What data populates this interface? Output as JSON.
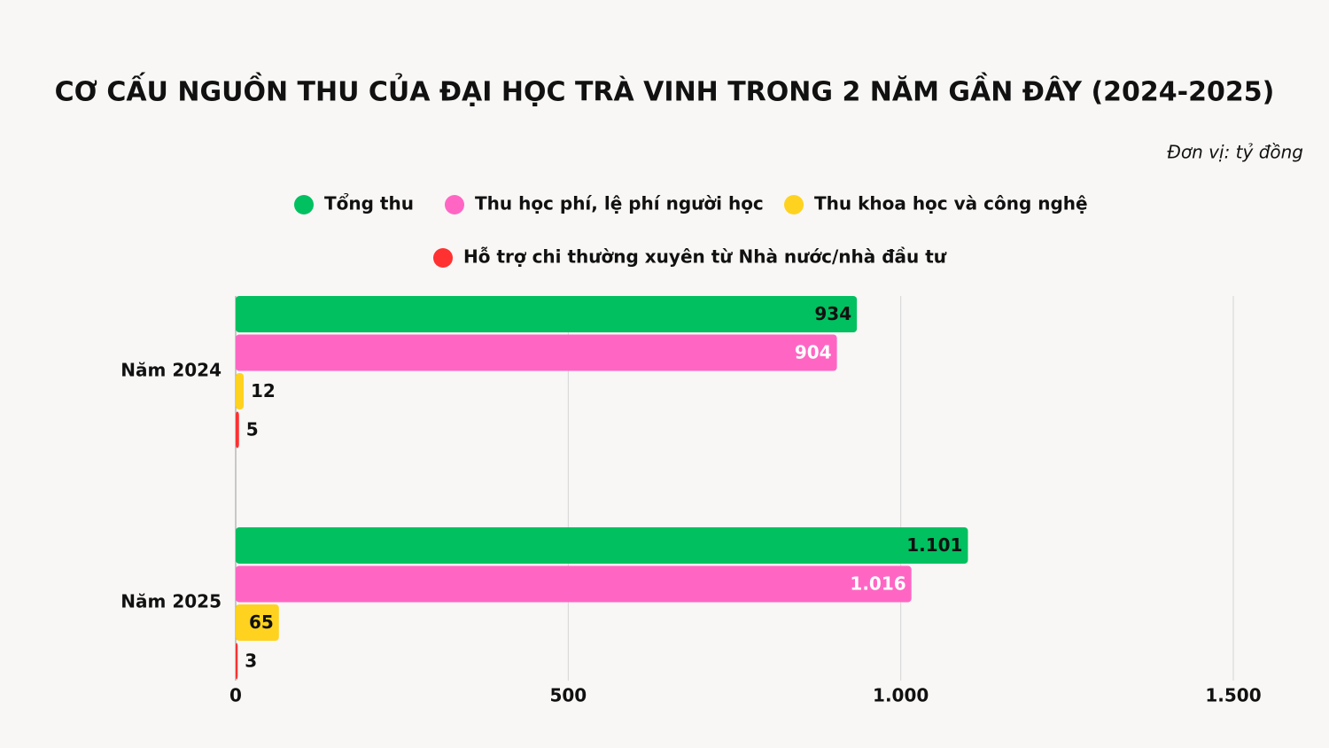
{
  "chart_data": {
    "type": "hbar",
    "title": "CƠ CẤU NGUỒN THU CỦA ĐẠI HỌC TRÀ VINH TRONG 2 NĂM GẦN ĐÂY (2024-2025)",
    "subtitle": "Đơn vị: tỷ đồng",
    "categories": [
      "Năm 2024",
      "Năm 2025"
    ],
    "series": [
      {
        "name": "Tổng thu",
        "color": "#00c060",
        "values": [
          934,
          1101
        ],
        "value_labels": [
          "934",
          "1.101"
        ]
      },
      {
        "name": "Thu học phí, lệ phí người học",
        "color": "#ff66c4",
        "values": [
          904,
          1016
        ],
        "value_labels": [
          "904",
          "1.016"
        ]
      },
      {
        "name": "Thu khoa học và công nghệ",
        "color": "#ffd21f",
        "values": [
          12,
          65
        ]
      },
      {
        "name": "Hỗ trợ chi thường xuyên từ Nhà nước/nhà đầu tư",
        "color": "#ff3131",
        "values": [
          5,
          3
        ]
      }
    ],
    "xlim": [
      0,
      1500
    ],
    "xticks": [
      0,
      500,
      {
        "value": 1000,
        "label": "1.000"
      },
      {
        "value": 1500,
        "label": "1.500"
      }
    ],
    "grid": true
  }
}
